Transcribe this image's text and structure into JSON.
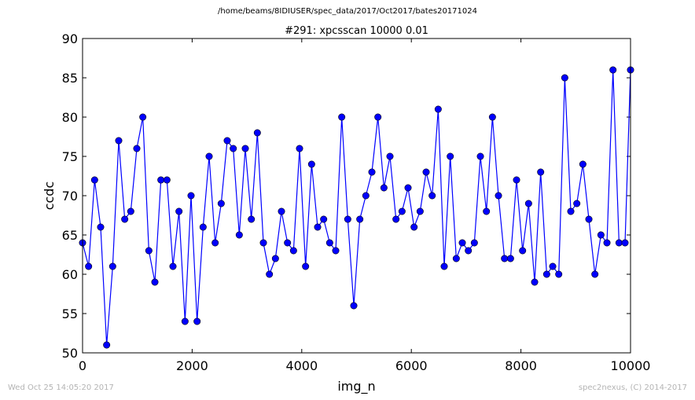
{
  "page": {
    "suptitle": "/home/beams/8IDIUSER/spec_data/2017/Oct2017/bates20171024",
    "footer_left": "Wed Oct 25 14:05:20 2017",
    "footer_right": "spec2nexus, (C) 2014-2017"
  },
  "colors": {
    "series": "#0000ff",
    "marker_edge": "#000000",
    "footer_text": "#b4b4b4"
  },
  "chart_data": {
    "type": "line",
    "title": "#291: xpcsscan 10000 0.01",
    "xlabel": "img_n",
    "ylabel": "ccdc",
    "xlim": [
      0,
      10000
    ],
    "ylim": [
      50,
      90
    ],
    "xticks": [
      0,
      2000,
      4000,
      6000,
      8000,
      10000
    ],
    "yticks": [
      50,
      55,
      60,
      65,
      70,
      75,
      80,
      85,
      90
    ],
    "grid": false,
    "legend": "none",
    "markers": "circle",
    "series": [
      {
        "x": [
          0,
          110,
          220,
          330,
          440,
          550,
          660,
          770,
          880,
          990,
          1100,
          1210,
          1320,
          1430,
          1540,
          1650,
          1760,
          1870,
          1980,
          2090,
          2200,
          2310,
          2420,
          2530,
          2640,
          2750,
          2860,
          2970,
          3080,
          3190,
          3300,
          3410,
          3520,
          3630,
          3740,
          3850,
          3960,
          4070,
          4180,
          4290,
          4400,
          4510,
          4620,
          4730,
          4840,
          4950,
          5060,
          5170,
          5280,
          5390,
          5500,
          5610,
          5720,
          5830,
          5940,
          6050,
          6160,
          6270,
          6380,
          6490,
          6600,
          6710,
          6820,
          6930,
          7040,
          7150,
          7260,
          7370,
          7480,
          7590,
          7700,
          7810,
          7920,
          8030,
          8140,
          8250,
          8360,
          8470,
          8580,
          8690,
          8800,
          8910,
          9020,
          9130,
          9240,
          9350,
          9460,
          9570,
          9680,
          9790,
          9900,
          10000
        ],
        "y": [
          64,
          61,
          72,
          66,
          51,
          61,
          77,
          67,
          68,
          76,
          80,
          63,
          59,
          72,
          72,
          61,
          68,
          54,
          70,
          54,
          66,
          75,
          64,
          69,
          77,
          76,
          65,
          76,
          67,
          78,
          64,
          60,
          62,
          68,
          64,
          63,
          76,
          61,
          74,
          66,
          67,
          64,
          63,
          80,
          67,
          56,
          67,
          70,
          73,
          80,
          71,
          75,
          67,
          68,
          71,
          66,
          68,
          73,
          70,
          81,
          61,
          75,
          62,
          64,
          63,
          64,
          75,
          68,
          80,
          70,
          62,
          62,
          72,
          63,
          69,
          59,
          73,
          60,
          61,
          60,
          85,
          68,
          69,
          74,
          67,
          60,
          65,
          64,
          86,
          64,
          64,
          86
        ]
      }
    ]
  }
}
